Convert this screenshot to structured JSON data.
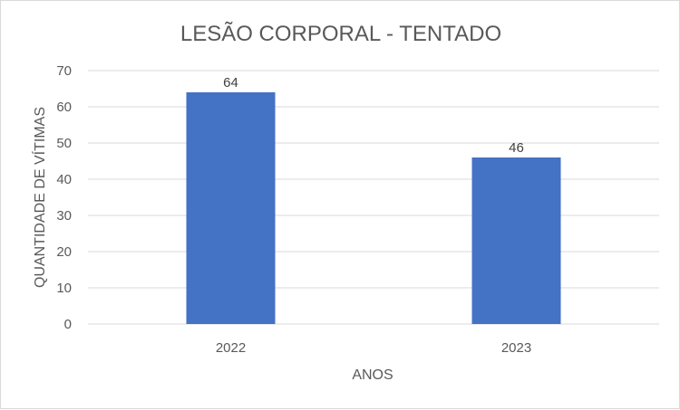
{
  "chart_data": {
    "type": "bar",
    "title": "LESÃO CORPORAL - TENTADO",
    "xlabel": "ANOS",
    "ylabel": "QUANTIDADE DE VÍTIMAS",
    "categories": [
      "2022",
      "2023"
    ],
    "values": [
      64,
      46
    ],
    "data_labels": [
      "64",
      "46"
    ],
    "ylim": [
      0,
      70
    ],
    "yticks": [
      "0",
      "10",
      "20",
      "30",
      "40",
      "50",
      "60",
      "70"
    ],
    "grid": true,
    "legend": "none",
    "bar_color": "#4472C4",
    "grid_color": "#d9d9d9"
  }
}
